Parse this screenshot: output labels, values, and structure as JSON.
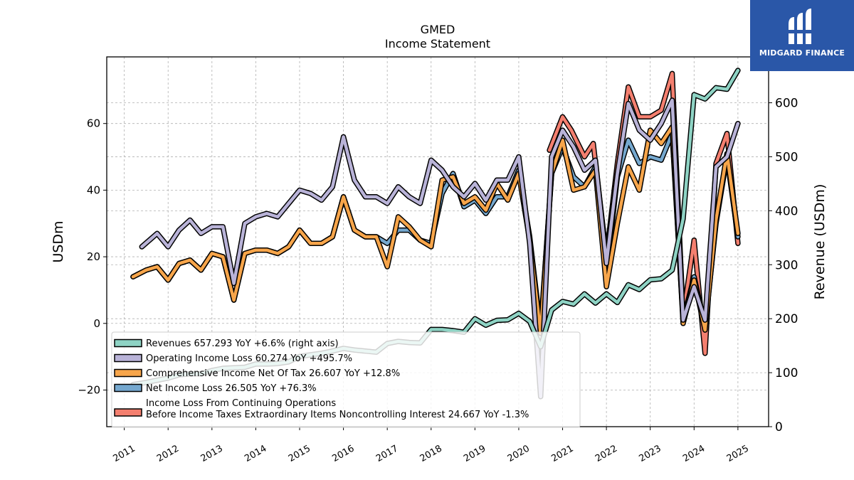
{
  "brand": {
    "name": "MIDGARD FINANCE",
    "logo_icon": "midgard-logo-icon",
    "bg_color": "#2a57a8"
  },
  "chart_data": {
    "type": "line",
    "title": "GMED",
    "subtitle": "Income Statement",
    "ylabel": "USDm",
    "y2label": "Revenue (USDm)",
    "ylim": [
      -31,
      80
    ],
    "y2lim": [
      0,
      685
    ],
    "xlim": [
      2010.6,
      2025.7
    ],
    "yticks": [
      -20,
      0,
      20,
      40,
      60
    ],
    "y2ticks": [
      0,
      100,
      200,
      300,
      400,
      500,
      600
    ],
    "xticks": [
      "2011",
      "2012",
      "2013",
      "2014",
      "2015",
      "2016",
      "2017",
      "2018",
      "2019",
      "2020",
      "2021",
      "2022",
      "2023",
      "2024",
      "2025"
    ],
    "grid": true,
    "legend_position": "lower-left",
    "series": [
      {
        "name": "Income Loss From Continuing Operations\nBefore Income Taxes Extraordinary Items Noncontrolling Interest  24.667 YoY -1.3%",
        "color": "#f47f6f",
        "axis": "left",
        "x": [
          2020.7,
          2021.0,
          2021.2,
          2021.5,
          2021.7,
          2022.0,
          2022.25,
          2022.5,
          2022.75,
          2023.0,
          2023.25,
          2023.5,
          2023.75,
          2024.0,
          2024.25,
          2024.5,
          2024.75,
          2025.0
        ],
        "values": [
          52,
          62,
          58,
          50,
          54,
          20,
          48,
          71,
          62,
          62,
          64,
          75,
          2,
          25,
          -9,
          48,
          57,
          24
        ]
      },
      {
        "name": "Net Income Loss  26.505 YoY +76.3%",
        "color": "#75a8cf",
        "axis": "left",
        "x": [
          2011.2,
          2011.5,
          2011.75,
          2012.0,
          2012.25,
          2012.5,
          2012.75,
          2013.0,
          2013.25,
          2013.5,
          2013.75,
          2014.0,
          2014.25,
          2014.5,
          2014.75,
          2015.0,
          2015.25,
          2015.5,
          2015.75,
          2016.0,
          2016.25,
          2016.5,
          2016.75,
          2017.0,
          2017.25,
          2017.5,
          2017.75,
          2018.0,
          2018.25,
          2018.5,
          2018.75,
          2019.0,
          2019.25,
          2019.5,
          2019.75,
          2020.0,
          2020.25,
          2020.5,
          2020.75,
          2021.0,
          2021.25,
          2021.5,
          2021.75,
          2022.0,
          2022.25,
          2022.5,
          2022.75,
          2023.0,
          2023.25,
          2023.5,
          2023.75,
          2024.0,
          2024.25,
          2024.5,
          2024.75,
          2025.0
        ],
        "values": [
          14,
          16,
          17,
          13,
          18,
          19,
          16,
          21,
          20,
          7,
          21,
          22,
          22,
          21,
          23,
          28,
          24,
          24,
          26,
          38,
          28,
          26,
          26,
          24,
          28,
          28,
          25,
          24,
          39,
          45,
          35,
          37,
          33,
          38,
          38,
          46,
          26,
          -2,
          45,
          53,
          44,
          41,
          47,
          15,
          44,
          55,
          48,
          50,
          49,
          57,
          1,
          14,
          -1,
          30,
          50,
          26
        ]
      },
      {
        "name": "Comprehensive Income Net Of Tax  26.607 YoY +12.8%",
        "color": "#f7a54a",
        "axis": "left",
        "x": [
          2011.2,
          2011.5,
          2011.75,
          2012.0,
          2012.25,
          2012.5,
          2012.75,
          2013.0,
          2013.25,
          2013.5,
          2013.75,
          2014.0,
          2014.25,
          2014.5,
          2014.75,
          2015.0,
          2015.25,
          2015.5,
          2015.75,
          2016.0,
          2016.25,
          2016.5,
          2016.75,
          2017.0,
          2017.25,
          2017.5,
          2017.75,
          2018.0,
          2018.25,
          2018.5,
          2018.75,
          2019.0,
          2019.25,
          2019.5,
          2019.75,
          2020.0,
          2020.25,
          2020.5,
          2020.75,
          2021.0,
          2021.25,
          2021.5,
          2021.75,
          2022.0,
          2022.25,
          2022.5,
          2022.75,
          2023.0,
          2023.25,
          2023.5,
          2023.75,
          2024.0,
          2024.25,
          2024.5,
          2024.75,
          2025.0
        ],
        "values": [
          14,
          16,
          17,
          13,
          18,
          19,
          16,
          21,
          20,
          7,
          21,
          22,
          22,
          21,
          23,
          28,
          24,
          24,
          26,
          38,
          28,
          26,
          26,
          17,
          32,
          29,
          25,
          23,
          43,
          44,
          36,
          38,
          34,
          42,
          37,
          45,
          25,
          -3,
          45,
          55,
          40,
          41,
          46,
          11,
          30,
          47,
          40,
          58,
          54,
          59,
          0,
          13,
          -2,
          31,
          51,
          27
        ]
      },
      {
        "name": "Operating Income Loss  60.274 YoY +495.7%",
        "color": "#b9b3d8",
        "axis": "left",
        "x": [
          2011.4,
          2011.75,
          2012.0,
          2012.25,
          2012.5,
          2012.75,
          2013.0,
          2013.25,
          2013.5,
          2013.75,
          2014.0,
          2014.25,
          2014.5,
          2014.75,
          2015.0,
          2015.25,
          2015.5,
          2015.75,
          2016.0,
          2016.25,
          2016.5,
          2016.75,
          2017.0,
          2017.25,
          2017.5,
          2017.75,
          2018.0,
          2018.25,
          2018.5,
          2018.75,
          2019.0,
          2019.25,
          2019.5,
          2019.75,
          2020.0,
          2020.25,
          2020.5,
          2020.75,
          2021.0,
          2021.25,
          2021.5,
          2021.75,
          2022.0,
          2022.25,
          2022.5,
          2022.75,
          2023.0,
          2023.25,
          2023.5,
          2023.75,
          2024.0,
          2024.25,
          2024.5,
          2024.75,
          2025.0
        ],
        "values": [
          23,
          27,
          23,
          28,
          31,
          27,
          29,
          29,
          12,
          30,
          32,
          33,
          32,
          36,
          40,
          39,
          37,
          41,
          56,
          43,
          38,
          38,
          36,
          41,
          38,
          36,
          49,
          46,
          41,
          38,
          42,
          37,
          43,
          43,
          50,
          24,
          -22,
          50,
          58,
          53,
          46,
          49,
          18,
          45,
          66,
          58,
          55,
          60,
          67,
          1,
          11,
          1,
          47,
          50,
          60
        ]
      },
      {
        "name": "Revenues  657.293 YoY +6.6% (right axis)",
        "color": "#8ed3c4",
        "axis": "right",
        "x": [
          2011.2,
          2011.5,
          2011.75,
          2012.0,
          2012.25,
          2012.5,
          2012.75,
          2013.0,
          2013.25,
          2013.5,
          2013.75,
          2014.0,
          2014.25,
          2014.5,
          2014.75,
          2015.0,
          2015.25,
          2015.5,
          2015.75,
          2016.0,
          2016.25,
          2016.5,
          2016.75,
          2017.0,
          2017.25,
          2017.5,
          2017.75,
          2018.0,
          2018.25,
          2018.5,
          2018.75,
          2019.0,
          2019.25,
          2019.5,
          2019.75,
          2020.0,
          2020.25,
          2020.5,
          2020.75,
          2021.0,
          2021.25,
          2021.5,
          2021.75,
          2022.0,
          2022.25,
          2022.5,
          2022.75,
          2023.0,
          2023.25,
          2023.5,
          2023.75,
          2024.0,
          2024.25,
          2024.5,
          2024.75,
          2025.0
        ],
        "values": [
          78,
          82,
          86,
          90,
          96,
          98,
          98,
          104,
          108,
          109,
          110,
          116,
          116,
          117,
          120,
          130,
          133,
          136,
          140,
          145,
          142,
          140,
          138,
          154,
          158,
          156,
          155,
          180,
          180,
          178,
          175,
          200,
          188,
          197,
          198,
          210,
          195,
          148,
          216,
          232,
          227,
          246,
          229,
          246,
          230,
          263,
          254,
          272,
          274,
          290,
          385,
          615,
          607,
          628,
          625,
          660
        ]
      }
    ]
  }
}
